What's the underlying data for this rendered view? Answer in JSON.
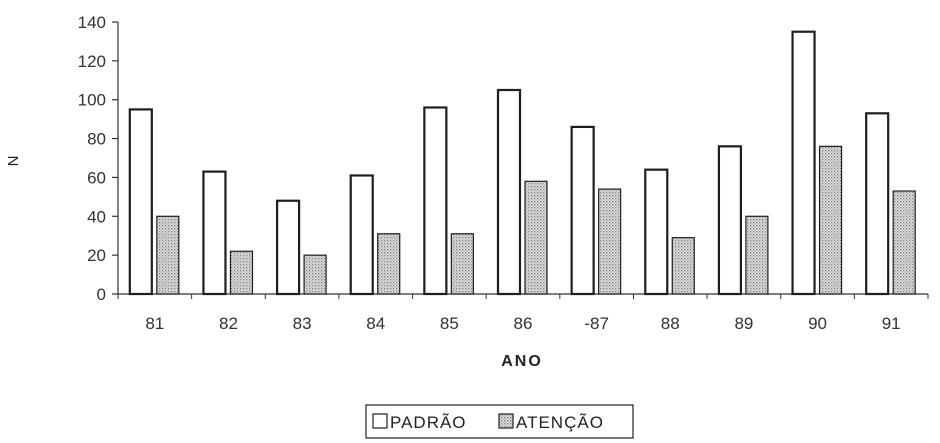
{
  "chart_data": {
    "type": "bar",
    "categories": [
      "81",
      "82",
      "83",
      "84",
      "85",
      "86",
      "-87",
      "88",
      "89",
      "90",
      "91"
    ],
    "series": [
      {
        "name": "PADRÃO",
        "values": [
          95,
          63,
          48,
          61,
          96,
          105,
          86,
          64,
          76,
          135,
          93
        ]
      },
      {
        "name": "ATENÇÃO",
        "values": [
          40,
          22,
          20,
          31,
          31,
          58,
          54,
          29,
          40,
          76,
          53
        ]
      }
    ],
    "xlabel": "ANO",
    "ylabel": "N",
    "ylim": [
      0,
      140
    ],
    "yticks": [
      "0",
      "20",
      "40",
      "60",
      "80",
      "100",
      "120",
      "140"
    ],
    "grid": false,
    "legend_position": "bottom-center",
    "colors": {
      "series_1_fill": "#ffffff",
      "series_2_fill": "#c9c9c9",
      "stroke": "#222222"
    }
  }
}
